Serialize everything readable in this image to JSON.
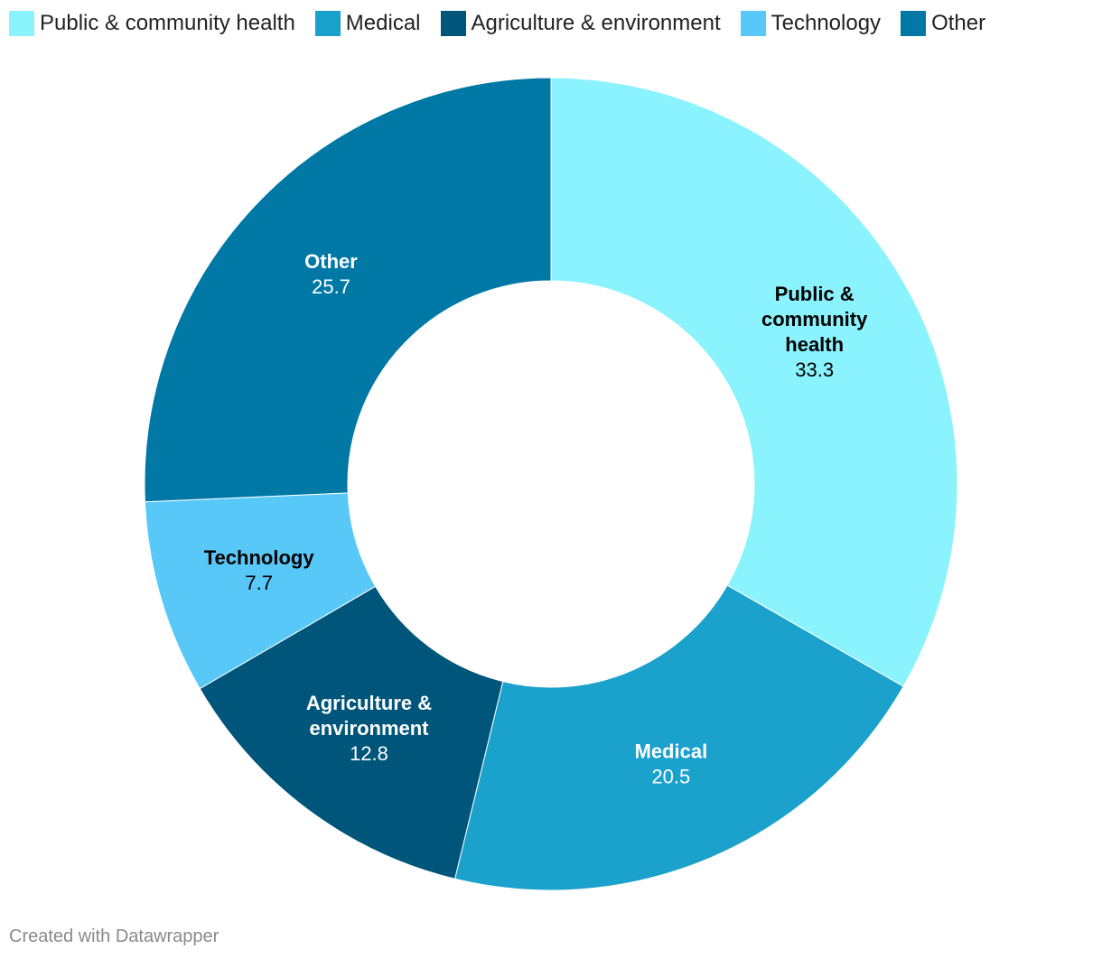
{
  "chart_data": {
    "type": "donut",
    "title": "",
    "categories": [
      "Public & community health",
      "Medical",
      "Agriculture & environment",
      "Technology",
      "Other"
    ],
    "values": [
      33.3,
      20.5,
      12.8,
      7.7,
      25.7
    ],
    "colors": [
      "#8af3fe",
      "#1aa1cc",
      "#00557a",
      "#57c8f7",
      "#0078a5"
    ],
    "label_colors": [
      "#000000",
      "#ffffff",
      "#ffffff",
      "#000000",
      "#ffffff"
    ],
    "slice_labels": [
      {
        "name_lines": [
          "Public &",
          "community",
          "health"
        ],
        "value": "33.3"
      },
      {
        "name_lines": [
          "Medical"
        ],
        "value": "20.5"
      },
      {
        "name_lines": [
          "Agriculture &",
          "environment"
        ],
        "value": "12.8"
      },
      {
        "name_lines": [
          "Technology"
        ],
        "value": "7.7"
      },
      {
        "name_lines": [
          "Other"
        ],
        "value": "25.7"
      }
    ],
    "legend_position": "top-left"
  },
  "legend": {
    "items": [
      {
        "label": "Public & community health",
        "color": "#8af3fe"
      },
      {
        "label": "Medical",
        "color": "#1aa1cc"
      },
      {
        "label": "Agriculture & environment",
        "color": "#00557a"
      },
      {
        "label": "Technology",
        "color": "#57c8f7"
      },
      {
        "label": "Other",
        "color": "#0078a5"
      }
    ]
  },
  "footer": {
    "credit": "Created with Datawrapper"
  }
}
